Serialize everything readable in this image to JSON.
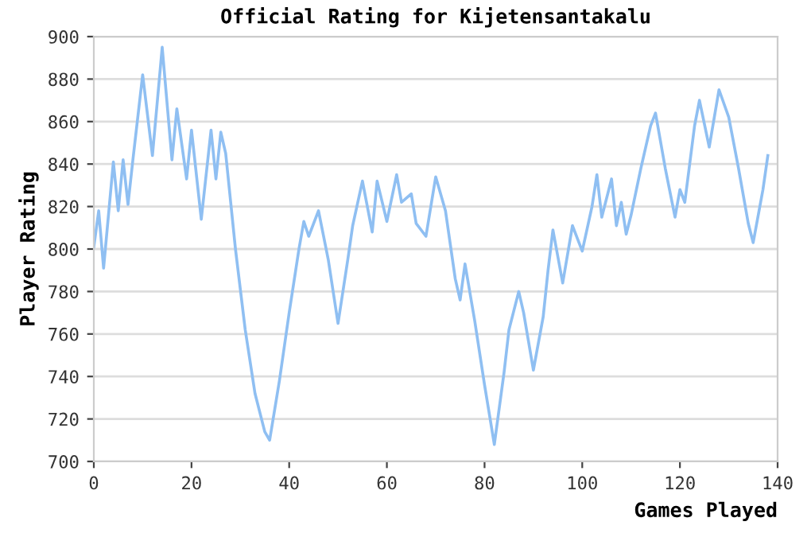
{
  "chart_data": {
    "type": "line",
    "title": "Official Rating for Kijetensantakalu",
    "xlabel": "Games Played",
    "ylabel": "Player Rating",
    "x": [
      0,
      1,
      2,
      4,
      5,
      6,
      7,
      8,
      10,
      12,
      14,
      16,
      17,
      19,
      20,
      22,
      24,
      25,
      26,
      27,
      29,
      31,
      33,
      35,
      36,
      38,
      40,
      42,
      43,
      44,
      46,
      48,
      50,
      52,
      53,
      55,
      57,
      58,
      60,
      62,
      63,
      65,
      66,
      68,
      70,
      72,
      74,
      75,
      76,
      78,
      80,
      82,
      84,
      85,
      87,
      88,
      90,
      92,
      93,
      94,
      96,
      98,
      100,
      102,
      103,
      104,
      106,
      107,
      108,
      109,
      110,
      112,
      114,
      115,
      117,
      119,
      120,
      121,
      123,
      124,
      126,
      128,
      130,
      132,
      134,
      135,
      137,
      138
    ],
    "values": [
      801,
      818,
      791,
      841,
      818,
      842,
      821,
      842,
      882,
      844,
      895,
      842,
      866,
      833,
      856,
      814,
      856,
      833,
      855,
      845,
      800,
      762,
      732,
      714,
      710,
      738,
      770,
      800,
      813,
      806,
      818,
      795,
      765,
      795,
      811,
      832,
      808,
      832,
      813,
      835,
      822,
      826,
      812,
      806,
      834,
      818,
      786,
      776,
      793,
      766,
      736,
      708,
      742,
      762,
      780,
      770,
      743,
      768,
      790,
      809,
      784,
      811,
      799,
      820,
      835,
      815,
      833,
      811,
      822,
      807,
      816,
      838,
      858,
      864,
      838,
      815,
      828,
      822,
      858,
      870,
      848,
      875,
      862,
      838,
      812,
      803,
      828,
      844
    ],
    "color": "#8fbff2",
    "xlim": [
      0,
      140
    ],
    "xticks": [
      0,
      20,
      40,
      60,
      80,
      100,
      120,
      140
    ],
    "ylim": [
      700,
      900
    ],
    "yticks": [
      700,
      720,
      740,
      760,
      780,
      800,
      820,
      840,
      860,
      880,
      900
    ],
    "grid": "y",
    "marker": "none",
    "line_style": "solid",
    "legend": false
  }
}
